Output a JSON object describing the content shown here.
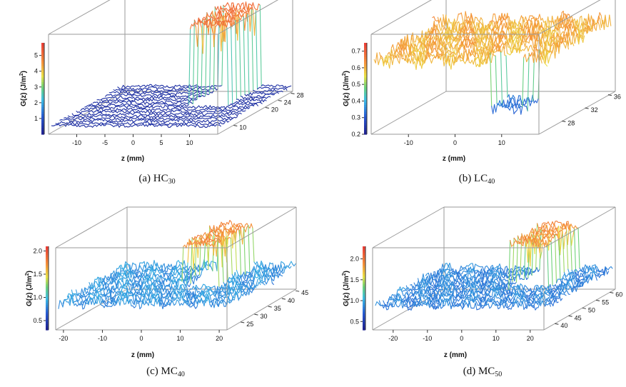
{
  "chart_data": [
    {
      "id": "a",
      "type": "line3d",
      "caption": {
        "main": "(a) HC",
        "sub": "30"
      },
      "xlabel": "z (mm)",
      "zlabel": "G(z) (J/m",
      "zlabel_sup": "2",
      "zlabel_close": ")",
      "xticks": [
        "-10",
        "-5",
        "0",
        "5",
        "10"
      ],
      "yticks": [
        "10",
        "20",
        "24",
        "28"
      ],
      "zticks": [
        "1",
        "2",
        "3",
        "4",
        "5"
      ],
      "xlim": [
        -15,
        15
      ],
      "ylim": [
        5,
        29
      ],
      "zlim": [
        0,
        5.8
      ],
      "colorbar": {
        "min": 0,
        "max": 5.8
      },
      "n_lines": 18,
      "base": {
        "level": 0.4,
        "noise": 0.08
      },
      "peak": {
        "xmin": 3,
        "xmax": 9.5,
        "yfrom": 0.5,
        "level": 5.3,
        "noise": 0.5
      }
    },
    {
      "id": "b",
      "type": "line3d",
      "caption": {
        "main": "(b) LC",
        "sub": "40"
      },
      "xlabel": "z (mm)",
      "zlabel": "G(z) (J/m",
      "zlabel_sup": "2",
      "zlabel_close": ")",
      "xticks": [
        "-10",
        "0",
        "10"
      ],
      "yticks": [
        "28",
        "32",
        "36"
      ],
      "zticks": [
        "0.2",
        "0.3",
        "0.4",
        "0.5",
        "0.6",
        "0.7"
      ],
      "xlim": [
        -18,
        18
      ],
      "ylim": [
        24,
        37
      ],
      "zlim": [
        0.2,
        0.75
      ],
      "colorbar": {
        "min": 0.2,
        "max": 0.75
      },
      "n_lines": 14,
      "base": {
        "level": 0.6,
        "noise": 0.04
      },
      "dip": {
        "xmin": 7,
        "xmax": 14,
        "yto": 0.25,
        "level": 0.33,
        "noise": 0.03
      }
    },
    {
      "id": "c",
      "type": "line3d",
      "caption": {
        "main": "(c) MC",
        "sub": "40"
      },
      "xlabel": "z (mm)",
      "zlabel": "G(z) (J/m",
      "zlabel_sup": "2",
      "zlabel_close": ")",
      "xticks": [
        "-20",
        "-10",
        "0",
        "10",
        "20"
      ],
      "yticks": [
        "25",
        "30",
        "35",
        "40",
        "45"
      ],
      "zticks": [
        "0.5",
        "1.0",
        "1.5",
        "2.0"
      ],
      "xlim": [
        -22,
        22
      ],
      "ylim": [
        20,
        46
      ],
      "zlim": [
        0.3,
        2.1
      ],
      "colorbar": {
        "min": 0.3,
        "max": 2.1
      },
      "n_lines": 16,
      "base": {
        "level": 0.85,
        "noise": 0.1
      },
      "peak": {
        "xmin": 2,
        "xmax": 11,
        "yfrom": 0.45,
        "level": 1.85,
        "noise": 0.18
      }
    },
    {
      "id": "d",
      "type": "line3d",
      "caption": {
        "main": "(d) MC",
        "sub": "50"
      },
      "xlabel": "z (mm)",
      "zlabel": "G(z) (J/m",
      "zlabel_sup": "2",
      "zlabel_close": ")",
      "xticks": [
        "-20",
        "-10",
        "0",
        "10",
        "20"
      ],
      "yticks": [
        "40",
        "45",
        "50",
        "55",
        "60"
      ],
      "zticks": [
        "0.5",
        "1.0",
        "1.5",
        "2.0"
      ],
      "xlim": [
        -26,
        24
      ],
      "ylim": [
        36,
        62
      ],
      "zlim": [
        0.3,
        2.3
      ],
      "colorbar": {
        "min": 0.3,
        "max": 2.3
      },
      "n_lines": 18,
      "base": {
        "level": 0.85,
        "noise": 0.1
      },
      "peak": {
        "xmin": 3,
        "xmax": 14,
        "yfrom": 0.5,
        "level": 2.0,
        "noise": 0.2
      }
    }
  ]
}
